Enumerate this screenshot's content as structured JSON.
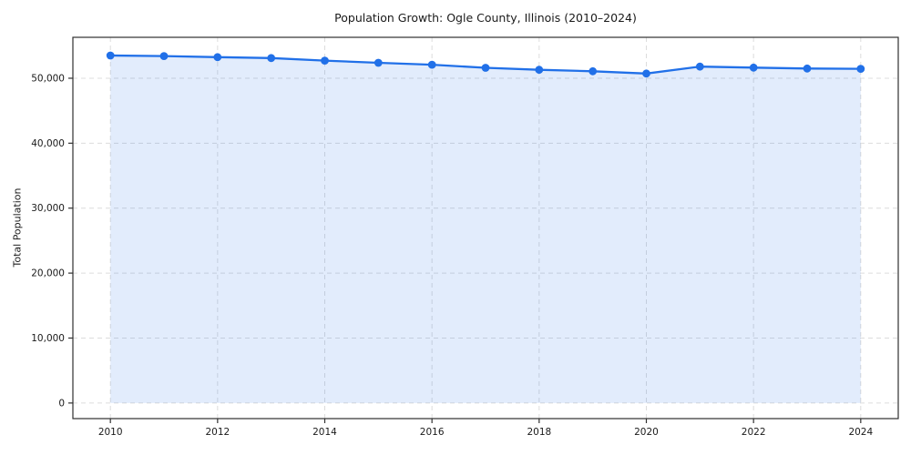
{
  "chart_data": {
    "type": "line",
    "title": "Population Growth: Ogle County, Illinois (2010–2024)",
    "xlabel": "",
    "ylabel": "Total Population",
    "x": [
      2010,
      2011,
      2012,
      2013,
      2014,
      2015,
      2016,
      2017,
      2018,
      2019,
      2020,
      2021,
      2022,
      2023,
      2024
    ],
    "series": [
      {
        "name": "Total Population",
        "values": [
          53500,
          53420,
          53240,
          53100,
          52720,
          52380,
          52080,
          51610,
          51300,
          51080,
          50720,
          51790,
          51640,
          51500,
          51450
        ]
      }
    ],
    "area_fill": true,
    "markers": true,
    "grid": true,
    "grid_dashed": true,
    "legend": false,
    "xlim": [
      2009.3,
      2024.7
    ],
    "ylim": [
      -2400,
      56300
    ],
    "x_ticks": {
      "values": [
        2010,
        2012,
        2014,
        2016,
        2018,
        2020,
        2022,
        2024
      ],
      "labels": [
        "2010",
        "2012",
        "2014",
        "2016",
        "2018",
        "2020",
        "2022",
        "2024"
      ]
    },
    "y_ticks": {
      "values": [
        0,
        10000,
        20000,
        30000,
        40000,
        50000
      ],
      "labels": [
        "0",
        "10,000",
        "20,000",
        "30,000",
        "40,000",
        "50,000"
      ]
    },
    "colors": {
      "line": "#2170e8",
      "marker": "#2170e8",
      "fill": "rgba(33, 112, 232, 0.13)",
      "grid": "#dcdcdc",
      "spine": "#303030",
      "text": "#1a1a1a",
      "background": "#ffffff"
    }
  }
}
